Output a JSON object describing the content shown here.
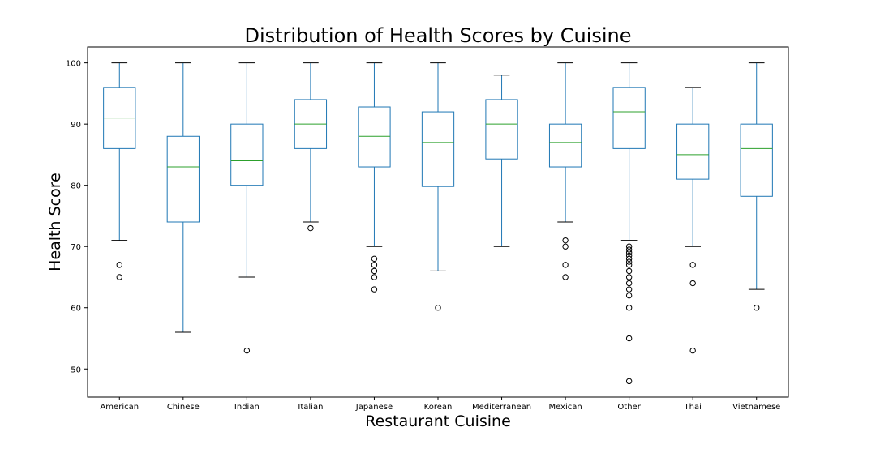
{
  "chart_data": {
    "type": "box",
    "title": "Distribution of Health Scores by Cuisine",
    "xlabel": "Restaurant Cuisine",
    "ylabel": "Health Score",
    "ylim": [
      45.4,
      102.6
    ],
    "yticks": [
      50,
      60,
      70,
      80,
      90,
      100
    ],
    "grid": false,
    "colors": {
      "box": "#1f77b4",
      "median": "#2ca02c",
      "whisker_cap": "#000000",
      "outlier": "#000000"
    },
    "categories": [
      "American",
      "Chinese",
      "Indian",
      "Italian",
      "Japanese",
      "Korean",
      "Mediterranean",
      "Mexican",
      "Other",
      "Thai",
      "Vietnamese"
    ],
    "boxes": [
      {
        "whislo": 71,
        "q1": 86,
        "med": 91,
        "q3": 96,
        "whishi": 100,
        "fliers": [
          67,
          65
        ]
      },
      {
        "whislo": 56,
        "q1": 74,
        "med": 83,
        "q3": 88,
        "whishi": 100,
        "fliers": []
      },
      {
        "whislo": 65,
        "q1": 80,
        "med": 84,
        "q3": 90,
        "whishi": 100,
        "fliers": [
          53
        ]
      },
      {
        "whislo": 74,
        "q1": 86,
        "med": 90,
        "q3": 94,
        "whishi": 100,
        "fliers": [
          73
        ]
      },
      {
        "whislo": 70,
        "q1": 83,
        "med": 88,
        "q3": 92.8,
        "whishi": 100,
        "fliers": [
          68,
          67,
          66,
          65,
          63
        ]
      },
      {
        "whislo": 66,
        "q1": 79.8,
        "med": 87,
        "q3": 92,
        "whishi": 100,
        "fliers": [
          60
        ]
      },
      {
        "whislo": 70,
        "q1": 84.3,
        "med": 90,
        "q3": 94,
        "whishi": 98,
        "fliers": []
      },
      {
        "whislo": 74,
        "q1": 83,
        "med": 87,
        "q3": 90,
        "whishi": 100,
        "fliers": [
          71,
          70,
          67,
          65
        ]
      },
      {
        "whislo": 71,
        "q1": 86,
        "med": 92,
        "q3": 96,
        "whishi": 100,
        "fliers": [
          70,
          69.5,
          69,
          68.5,
          68,
          67.5,
          67,
          66,
          65,
          64,
          63,
          62,
          60,
          55,
          48
        ]
      },
      {
        "whislo": 70,
        "q1": 81,
        "med": 85,
        "q3": 90,
        "whishi": 96,
        "fliers": [
          67,
          64,
          53
        ]
      },
      {
        "whislo": 63,
        "q1": 78.2,
        "med": 86,
        "q3": 90,
        "whishi": 100,
        "fliers": [
          60
        ]
      }
    ]
  }
}
